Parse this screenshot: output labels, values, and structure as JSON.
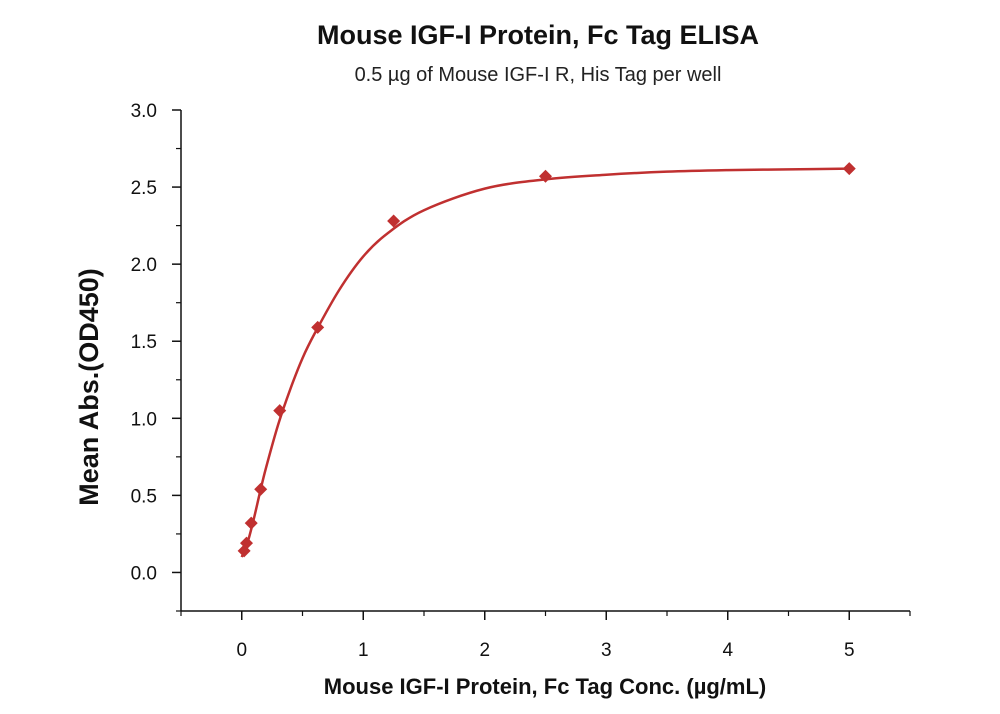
{
  "chart_data": {
    "type": "scatter",
    "title": "Mouse IGF-I Protein, Fc Tag ELISA",
    "subtitle": "0.5 µg of Mouse IGF-I R, His Tag per well",
    "xlabel": "Mouse IGF-I Protein, Fc Tag Conc. (µg/mL)",
    "ylabel": "Mean Abs.(OD450)",
    "xlim": [
      -0.5,
      5.5
    ],
    "ylim": [
      -0.25,
      3.0
    ],
    "x_ticks": [
      0,
      1,
      2,
      3,
      4,
      5
    ],
    "x_tick_labels": [
      "0",
      "1",
      "2",
      "3",
      "4",
      "5"
    ],
    "y_ticks": [
      0.0,
      0.5,
      1.0,
      1.5,
      2.0,
      2.5,
      3.0
    ],
    "y_tick_labels": [
      "0.0",
      "0.5",
      "1.0",
      "1.5",
      "2.0",
      "2.5",
      "3.0"
    ],
    "series": [
      {
        "name": "Mean Abs.",
        "color": "#c03030",
        "marker": "diamond",
        "x": [
          0.0195,
          0.039,
          0.078,
          0.156,
          0.3125,
          0.625,
          1.25,
          2.5,
          5.0
        ],
        "values": [
          0.14,
          0.19,
          0.32,
          0.54,
          1.05,
          1.59,
          2.28,
          2.57,
          2.62
        ]
      }
    ],
    "fit_curve": {
      "color": "#c03030",
      "x": [
        0.0,
        0.05,
        0.1,
        0.15,
        0.2,
        0.3,
        0.4,
        0.5,
        0.6,
        0.8,
        1.0,
        1.2,
        1.5,
        2.0,
        2.5,
        3.0,
        3.5,
        4.0,
        4.5,
        5.0
      ],
      "values": [
        0.1,
        0.2,
        0.35,
        0.52,
        0.68,
        0.96,
        1.19,
        1.39,
        1.55,
        1.83,
        2.05,
        2.2,
        2.35,
        2.49,
        2.55,
        2.58,
        2.6,
        2.61,
        2.615,
        2.62
      ]
    }
  }
}
